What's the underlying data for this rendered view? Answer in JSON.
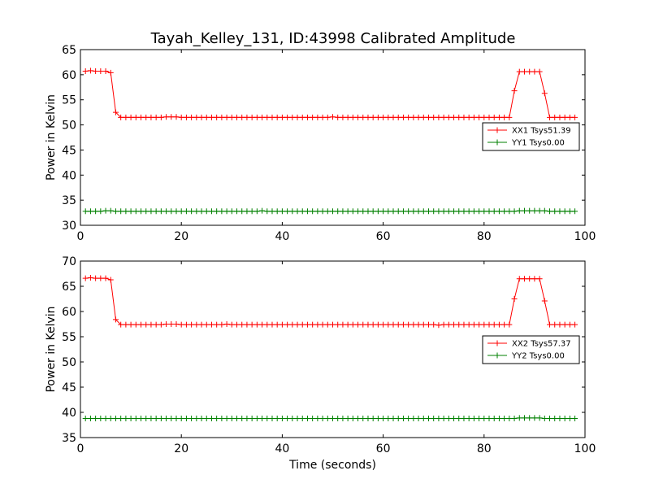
{
  "figure": {
    "title": "Tayah_Kelley_131, ID:43998 Calibrated Amplitude"
  },
  "chart_data": [
    {
      "type": "line",
      "title": "Tayah_Kelley_131, ID:43998 Calibrated Amplitude",
      "xlabel": "",
      "ylabel": "Power in Kelvin",
      "xlim": [
        0,
        100
      ],
      "ylim": [
        30,
        65
      ],
      "xticks": [
        0,
        20,
        40,
        60,
        80,
        100
      ],
      "yticks": [
        30,
        35,
        40,
        45,
        50,
        55,
        60,
        65
      ],
      "grid": false,
      "legend_position": "right",
      "series": [
        {
          "name": "XX1 Tsys51.39",
          "color": "#ff0000",
          "x": [
            1,
            2,
            3,
            4,
            5,
            6,
            7,
            8,
            9,
            10,
            11,
            12,
            13,
            14,
            15,
            16,
            17,
            18,
            19,
            20,
            21,
            22,
            23,
            24,
            25,
            26,
            27,
            28,
            29,
            30,
            31,
            32,
            33,
            34,
            35,
            36,
            37,
            38,
            39,
            40,
            41,
            42,
            43,
            44,
            45,
            46,
            47,
            48,
            49,
            50,
            51,
            52,
            53,
            54,
            55,
            56,
            57,
            58,
            59,
            60,
            61,
            62,
            63,
            64,
            65,
            66,
            67,
            68,
            69,
            70,
            71,
            72,
            73,
            74,
            75,
            76,
            77,
            78,
            79,
            80,
            81,
            82,
            83,
            84,
            85,
            86,
            87,
            88,
            89,
            90,
            91,
            92,
            93,
            94,
            95,
            96,
            97,
            98
          ],
          "values": [
            60.7,
            60.8,
            60.7,
            60.7,
            60.7,
            60.4,
            52.5,
            51.5,
            51.5,
            51.5,
            51.5,
            51.5,
            51.5,
            51.5,
            51.5,
            51.5,
            51.6,
            51.6,
            51.6,
            51.5,
            51.5,
            51.5,
            51.5,
            51.5,
            51.5,
            51.5,
            51.5,
            51.5,
            51.5,
            51.5,
            51.5,
            51.5,
            51.5,
            51.5,
            51.5,
            51.5,
            51.5,
            51.5,
            51.5,
            51.5,
            51.5,
            51.5,
            51.5,
            51.5,
            51.5,
            51.5,
            51.5,
            51.5,
            51.5,
            51.6,
            51.5,
            51.5,
            51.5,
            51.5,
            51.5,
            51.5,
            51.5,
            51.5,
            51.5,
            51.5,
            51.5,
            51.5,
            51.5,
            51.5,
            51.5,
            51.5,
            51.5,
            51.5,
            51.5,
            51.5,
            51.5,
            51.5,
            51.5,
            51.5,
            51.5,
            51.5,
            51.5,
            51.5,
            51.5,
            51.5,
            51.5,
            51.5,
            51.5,
            51.5,
            51.5,
            56.8,
            60.6,
            60.6,
            60.6,
            60.6,
            60.6,
            56.3,
            51.5,
            51.5,
            51.5,
            51.5,
            51.5,
            51.5
          ]
        },
        {
          "name": "YY1 Tsys0.00",
          "color": "#008000",
          "x": [
            1,
            2,
            3,
            4,
            5,
            6,
            7,
            8,
            9,
            10,
            11,
            12,
            13,
            14,
            15,
            16,
            17,
            18,
            19,
            20,
            21,
            22,
            23,
            24,
            25,
            26,
            27,
            28,
            29,
            30,
            31,
            32,
            33,
            34,
            35,
            36,
            37,
            38,
            39,
            40,
            41,
            42,
            43,
            44,
            45,
            46,
            47,
            48,
            49,
            50,
            51,
            52,
            53,
            54,
            55,
            56,
            57,
            58,
            59,
            60,
            61,
            62,
            63,
            64,
            65,
            66,
            67,
            68,
            69,
            70,
            71,
            72,
            73,
            74,
            75,
            76,
            77,
            78,
            79,
            80,
            81,
            82,
            83,
            84,
            85,
            86,
            87,
            88,
            89,
            90,
            91,
            92,
            93,
            94,
            95,
            96,
            97,
            98
          ],
          "values": [
            32.8,
            32.8,
            32.8,
            32.8,
            32.9,
            32.9,
            32.8,
            32.8,
            32.8,
            32.8,
            32.8,
            32.8,
            32.8,
            32.8,
            32.8,
            32.8,
            32.8,
            32.8,
            32.8,
            32.8,
            32.8,
            32.8,
            32.8,
            32.8,
            32.8,
            32.8,
            32.8,
            32.8,
            32.8,
            32.8,
            32.8,
            32.8,
            32.8,
            32.8,
            32.8,
            32.9,
            32.8,
            32.8,
            32.8,
            32.8,
            32.8,
            32.8,
            32.8,
            32.8,
            32.8,
            32.8,
            32.8,
            32.8,
            32.8,
            32.8,
            32.8,
            32.8,
            32.8,
            32.8,
            32.8,
            32.8,
            32.8,
            32.8,
            32.8,
            32.8,
            32.8,
            32.8,
            32.8,
            32.8,
            32.8,
            32.8,
            32.8,
            32.8,
            32.8,
            32.8,
            32.8,
            32.8,
            32.8,
            32.8,
            32.8,
            32.8,
            32.8,
            32.8,
            32.8,
            32.8,
            32.8,
            32.8,
            32.8,
            32.8,
            32.8,
            32.8,
            32.9,
            32.9,
            32.9,
            32.9,
            32.9,
            32.9,
            32.8,
            32.8,
            32.8,
            32.8,
            32.8,
            32.8
          ]
        }
      ]
    },
    {
      "type": "line",
      "title": "",
      "xlabel": "Time (seconds)",
      "ylabel": "Power in Kelvin",
      "xlim": [
        0,
        100
      ],
      "ylim": [
        35,
        70
      ],
      "xticks": [
        0,
        20,
        40,
        60,
        80,
        100
      ],
      "yticks": [
        35,
        40,
        45,
        50,
        55,
        60,
        65,
        70
      ],
      "grid": false,
      "legend_position": "right",
      "series": [
        {
          "name": "XX2 Tsys57.37",
          "color": "#ff0000",
          "x": [
            1,
            2,
            3,
            4,
            5,
            6,
            7,
            8,
            9,
            10,
            11,
            12,
            13,
            14,
            15,
            16,
            17,
            18,
            19,
            20,
            21,
            22,
            23,
            24,
            25,
            26,
            27,
            28,
            29,
            30,
            31,
            32,
            33,
            34,
            35,
            36,
            37,
            38,
            39,
            40,
            41,
            42,
            43,
            44,
            45,
            46,
            47,
            48,
            49,
            50,
            51,
            52,
            53,
            54,
            55,
            56,
            57,
            58,
            59,
            60,
            61,
            62,
            63,
            64,
            65,
            66,
            67,
            68,
            69,
            70,
            71,
            72,
            73,
            74,
            75,
            76,
            77,
            78,
            79,
            80,
            81,
            82,
            83,
            84,
            85,
            86,
            87,
            88,
            89,
            90,
            91,
            92,
            93,
            94,
            95,
            96,
            97,
            98
          ],
          "values": [
            66.6,
            66.7,
            66.6,
            66.6,
            66.6,
            66.3,
            58.4,
            57.4,
            57.4,
            57.4,
            57.4,
            57.4,
            57.4,
            57.4,
            57.4,
            57.4,
            57.5,
            57.5,
            57.5,
            57.4,
            57.4,
            57.4,
            57.4,
            57.4,
            57.4,
            57.4,
            57.4,
            57.4,
            57.5,
            57.4,
            57.4,
            57.4,
            57.4,
            57.4,
            57.4,
            57.4,
            57.4,
            57.4,
            57.4,
            57.4,
            57.4,
            57.4,
            57.4,
            57.4,
            57.4,
            57.4,
            57.4,
            57.4,
            57.4,
            57.4,
            57.4,
            57.4,
            57.4,
            57.4,
            57.4,
            57.4,
            57.4,
            57.4,
            57.4,
            57.4,
            57.4,
            57.4,
            57.4,
            57.4,
            57.4,
            57.4,
            57.4,
            57.4,
            57.4,
            57.4,
            57.3,
            57.4,
            57.4,
            57.4,
            57.4,
            57.4,
            57.4,
            57.4,
            57.4,
            57.4,
            57.4,
            57.4,
            57.4,
            57.4,
            57.4,
            62.5,
            66.5,
            66.5,
            66.5,
            66.5,
            66.5,
            62.1,
            57.4,
            57.4,
            57.4,
            57.4,
            57.4,
            57.4
          ]
        },
        {
          "name": "YY2 Tsys0.00",
          "color": "#008000",
          "x": [
            1,
            2,
            3,
            4,
            5,
            6,
            7,
            8,
            9,
            10,
            11,
            12,
            13,
            14,
            15,
            16,
            17,
            18,
            19,
            20,
            21,
            22,
            23,
            24,
            25,
            26,
            27,
            28,
            29,
            30,
            31,
            32,
            33,
            34,
            35,
            36,
            37,
            38,
            39,
            40,
            41,
            42,
            43,
            44,
            45,
            46,
            47,
            48,
            49,
            50,
            51,
            52,
            53,
            54,
            55,
            56,
            57,
            58,
            59,
            60,
            61,
            62,
            63,
            64,
            65,
            66,
            67,
            68,
            69,
            70,
            71,
            72,
            73,
            74,
            75,
            76,
            77,
            78,
            79,
            80,
            81,
            82,
            83,
            84,
            85,
            86,
            87,
            88,
            89,
            90,
            91,
            92,
            93,
            94,
            95,
            96,
            97,
            98
          ],
          "values": [
            38.8,
            38.8,
            38.8,
            38.8,
            38.8,
            38.8,
            38.8,
            38.8,
            38.8,
            38.8,
            38.8,
            38.8,
            38.8,
            38.8,
            38.8,
            38.8,
            38.8,
            38.8,
            38.8,
            38.8,
            38.8,
            38.8,
            38.8,
            38.8,
            38.8,
            38.8,
            38.8,
            38.8,
            38.8,
            38.8,
            38.8,
            38.8,
            38.8,
            38.8,
            38.8,
            38.8,
            38.8,
            38.8,
            38.8,
            38.8,
            38.8,
            38.8,
            38.8,
            38.8,
            38.8,
            38.8,
            38.8,
            38.8,
            38.8,
            38.8,
            38.8,
            38.8,
            38.8,
            38.8,
            38.8,
            38.8,
            38.8,
            38.8,
            38.8,
            38.8,
            38.8,
            38.8,
            38.8,
            38.8,
            38.8,
            38.8,
            38.8,
            38.8,
            38.8,
            38.8,
            38.8,
            38.8,
            38.8,
            38.8,
            38.8,
            38.8,
            38.8,
            38.8,
            38.8,
            38.8,
            38.8,
            38.8,
            38.8,
            38.8,
            38.8,
            38.8,
            38.9,
            38.9,
            38.9,
            38.9,
            38.9,
            38.8,
            38.8,
            38.8,
            38.8,
            38.8,
            38.8,
            38.8
          ]
        }
      ]
    }
  ]
}
